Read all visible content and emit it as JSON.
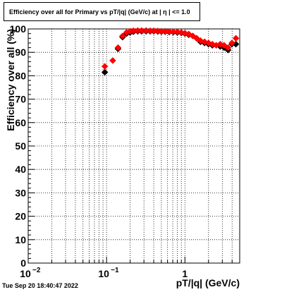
{
  "title": "Efficiency over all for Primary vs pT/|q| (GeV/c) at |  η | <= 1.0",
  "timestamp": "Tue Sep 20 18:40:47 2022",
  "chart_data": {
    "type": "scatter",
    "title": "Efficiency over all for Primary vs pT/|q| (GeV/c) at |  η | <= 1.0",
    "xlabel": "pT/|q| (GeV/c)",
    "ylabel": "Efficiency over all (%)",
    "x_scale": "log",
    "xlim": [
      0.01,
      5.0
    ],
    "ylim": [
      0,
      100
    ],
    "grid": true,
    "x_ticks": [
      {
        "value": 0.01,
        "base": "10",
        "exp": "−2"
      },
      {
        "value": 0.1,
        "base": "10",
        "exp": "−1"
      },
      {
        "value": 1,
        "base": "1",
        "exp": ""
      }
    ],
    "y_ticks": [
      0,
      10,
      20,
      30,
      40,
      50,
      60,
      70,
      80,
      90,
      100
    ],
    "series": [
      {
        "color": "#000000",
        "marker": "diamond",
        "x": [
          0.095,
          0.14,
          0.16,
          0.18,
          0.2,
          0.22,
          0.25,
          0.28,
          0.32,
          0.36,
          0.4,
          0.45,
          0.5,
          0.56,
          0.63,
          0.71,
          0.8,
          0.9,
          1.0,
          1.12,
          1.26,
          1.41,
          1.58,
          1.78,
          2.0,
          2.24,
          2.51,
          2.82,
          3.16,
          3.55,
          3.98,
          4.47
        ],
        "y": [
          81.5,
          91.5,
          96.5,
          98.0,
          98.5,
          98.8,
          99.0,
          99.0,
          99.0,
          99.0,
          99.0,
          98.9,
          98.8,
          98.8,
          98.7,
          98.6,
          98.5,
          98.3,
          98.0,
          97.5,
          97.0,
          96.0,
          94.5,
          94.0,
          93.5,
          93.0,
          93.0,
          92.5,
          92.0,
          91.0,
          93.5,
          93.5
        ]
      },
      {
        "color": "#ff0000",
        "marker": "diamond",
        "x": [
          0.095,
          0.12,
          0.14,
          0.16,
          0.18,
          0.2,
          0.22,
          0.25,
          0.28,
          0.32,
          0.36,
          0.4,
          0.45,
          0.5,
          0.56,
          0.63,
          0.71,
          0.8,
          0.9,
          1.0,
          1.12,
          1.26,
          1.41,
          1.58,
          1.78,
          2.0,
          2.24,
          2.51,
          2.82,
          3.16,
          3.55,
          3.98,
          4.47
        ],
        "y": [
          84.0,
          86.5,
          92.0,
          97.0,
          98.5,
          99.0,
          99.2,
          99.3,
          99.3,
          99.3,
          99.2,
          99.2,
          99.1,
          99.0,
          99.0,
          98.9,
          98.8,
          98.8,
          98.5,
          98.2,
          97.8,
          97.0,
          96.0,
          95.0,
          94.5,
          94.0,
          93.5,
          93.0,
          93.5,
          93.0,
          92.0,
          94.0,
          96.0
        ]
      }
    ]
  }
}
